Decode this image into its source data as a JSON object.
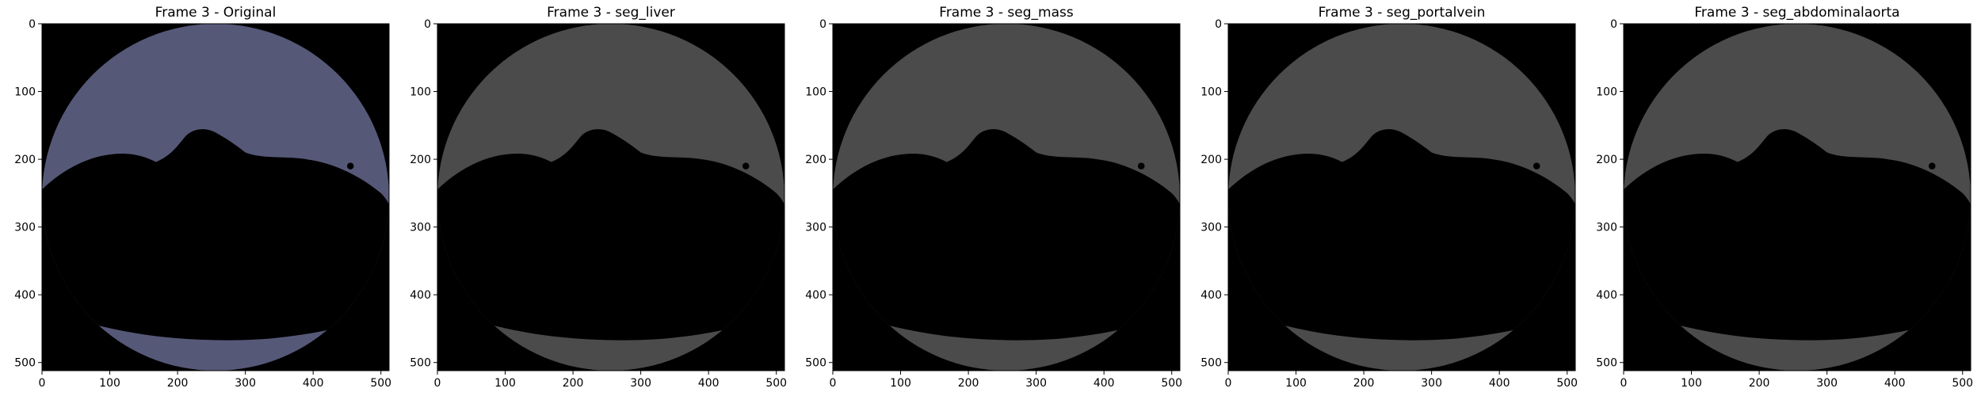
{
  "figure": {
    "panels": [
      {
        "title": "Frame 3 - Original",
        "colormap": "bone"
      },
      {
        "title": "Frame 3 - seg_liver",
        "colormap": "gray"
      },
      {
        "title": "Frame 3 - seg_mass",
        "colormap": "gray"
      },
      {
        "title": "Frame 3 - seg_portalvein",
        "colormap": "gray"
      },
      {
        "title": "Frame 3 - seg_abdominalaorta",
        "colormap": "gray"
      }
    ],
    "x_ticks": [
      "0",
      "100",
      "200",
      "300",
      "400",
      "500"
    ],
    "y_ticks": [
      "0",
      "100",
      "200",
      "300",
      "400",
      "500"
    ],
    "image_size": [
      512,
      512
    ],
    "colors": {
      "background": "#000000",
      "gray_fov": "#4b4b4b",
      "gray_body": "#6a6a6a",
      "gray_bone": "#dcdcdc",
      "bone_fov": "#565878",
      "bone_body": "#9cb2b6",
      "bone_bone": "#e6f2f0"
    }
  }
}
